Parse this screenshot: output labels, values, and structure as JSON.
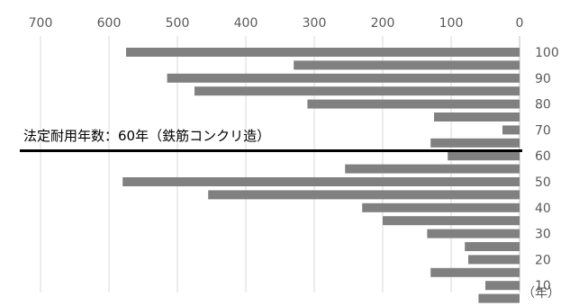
{
  "chart_data": {
    "type": "bar",
    "orientation": "horizontal",
    "x_reversed": true,
    "xlim": [
      0,
      750
    ],
    "x_ticks": [
      "700",
      "600",
      "500",
      "400",
      "300",
      "200",
      "100",
      "0"
    ],
    "x_tick_values": [
      700,
      600,
      500,
      400,
      300,
      200,
      100,
      0
    ],
    "y_ticks": [
      "100",
      "90",
      "80",
      "70",
      "60",
      "50",
      "40",
      "30",
      "20",
      "10"
    ],
    "y_tick_values": [
      100,
      90,
      80,
      70,
      60,
      50,
      40,
      30,
      20,
      10
    ],
    "y_unit": "（年）",
    "grid": "vertical",
    "bar_color": "#808080",
    "years": [
      100,
      95,
      90,
      85,
      80,
      75,
      70,
      65,
      60,
      55,
      50,
      45,
      40,
      35,
      30,
      25,
      20,
      15,
      10,
      5
    ],
    "values": [
      575,
      330,
      515,
      475,
      310,
      125,
      25,
      130,
      105,
      255,
      580,
      455,
      230,
      200,
      135,
      80,
      75,
      130,
      50,
      60
    ],
    "annotation": {
      "text": "法定耐用年数：60年（鉄筋コンクリ造）",
      "y_value": 62,
      "line_color": "#000000"
    }
  }
}
